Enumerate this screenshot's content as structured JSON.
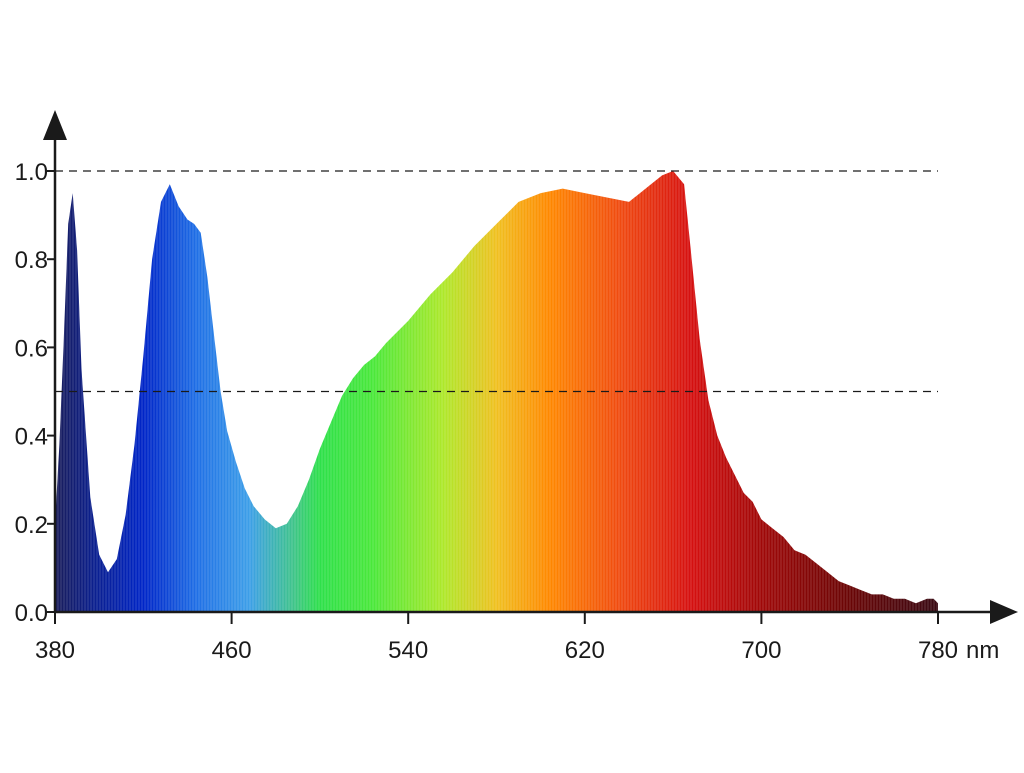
{
  "chart_data": {
    "type": "area",
    "title": "",
    "xlabel": "",
    "ylabel": "",
    "x_unit": "nm",
    "xlim": [
      380,
      780
    ],
    "ylim": [
      0,
      1.0
    ],
    "x_ticks": [
      "380",
      "460",
      "540",
      "620",
      "700",
      "780"
    ],
    "y_ticks": [
      "0.0",
      "0.2",
      "0.4",
      "0.6",
      "0.8",
      "1.0"
    ],
    "reference_lines": [
      1.0,
      0.5
    ],
    "fill": "visible-spectrum color gradient by wavelength",
    "series": [
      {
        "x": [
          380,
          382,
          384,
          386,
          388,
          390,
          392,
          396,
          400,
          404,
          408,
          412,
          416,
          420,
          424,
          428,
          432,
          436,
          440,
          443,
          446,
          449,
          452,
          455,
          458,
          462,
          466,
          470,
          475,
          480,
          485,
          490,
          495,
          500,
          505,
          510,
          515,
          520,
          525,
          530,
          540,
          550,
          560,
          570,
          580,
          590,
          600,
          610,
          620,
          630,
          640,
          645,
          650,
          655,
          660,
          665,
          668,
          672,
          676,
          680,
          684,
          688,
          692,
          696,
          700,
          705,
          710,
          715,
          720,
          725,
          730,
          735,
          740,
          745,
          750,
          755,
          760,
          765,
          770,
          775,
          778,
          780
        ],
        "y": [
          0.2,
          0.38,
          0.62,
          0.88,
          0.95,
          0.82,
          0.55,
          0.26,
          0.13,
          0.09,
          0.12,
          0.22,
          0.38,
          0.58,
          0.8,
          0.93,
          0.97,
          0.92,
          0.89,
          0.88,
          0.86,
          0.76,
          0.63,
          0.5,
          0.41,
          0.34,
          0.28,
          0.24,
          0.21,
          0.19,
          0.2,
          0.24,
          0.3,
          0.37,
          0.43,
          0.49,
          0.53,
          0.56,
          0.58,
          0.61,
          0.66,
          0.72,
          0.77,
          0.83,
          0.88,
          0.93,
          0.95,
          0.96,
          0.95,
          0.94,
          0.93,
          0.95,
          0.97,
          0.99,
          1.0,
          0.97,
          0.82,
          0.62,
          0.48,
          0.4,
          0.35,
          0.31,
          0.27,
          0.25,
          0.21,
          0.19,
          0.17,
          0.14,
          0.13,
          0.11,
          0.09,
          0.07,
          0.06,
          0.05,
          0.04,
          0.04,
          0.03,
          0.03,
          0.02,
          0.03,
          0.03,
          0.02
        ]
      }
    ],
    "grid": false,
    "legend": "none"
  }
}
